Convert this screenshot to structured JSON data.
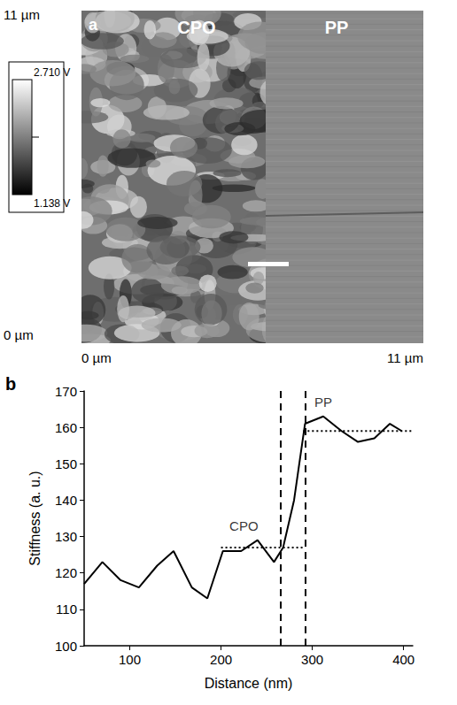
{
  "panel_a": {
    "label": "a",
    "regions": [
      "CPO",
      "PP"
    ],
    "y_axis": {
      "top": "11 µm",
      "bottom": "0 µm"
    },
    "x_axis": {
      "left": "0 µm",
      "right": "11 µm"
    },
    "colorbar": {
      "max": "2.710 V",
      "min": "1.138 V"
    }
  },
  "chart_data": {
    "type": "line",
    "panel_label": "b",
    "xlabel": "Distance (nm)",
    "ylabel": "Stiffness (a. u.)",
    "x": [
      50,
      70,
      90,
      110,
      130,
      148,
      168,
      185,
      202,
      222,
      240,
      258,
      268,
      280,
      292,
      312,
      332,
      350,
      368,
      385,
      398
    ],
    "values": [
      117,
      123,
      118,
      116,
      122,
      126,
      116,
      113,
      126,
      126,
      129,
      123,
      127,
      140,
      161,
      163,
      159,
      156,
      157,
      161,
      159
    ],
    "color": "#000000",
    "line_style": "solid",
    "xlim": [
      50,
      410
    ],
    "xticks": [
      100,
      200,
      300,
      400
    ],
    "ylim": [
      100,
      170
    ],
    "yticks": [
      100,
      110,
      120,
      130,
      140,
      150,
      160,
      170
    ],
    "vlines": [
      265,
      292
    ],
    "hlines": [
      {
        "y": 127,
        "x": [
          200,
          292
        ]
      },
      {
        "y": 159,
        "x": [
          290,
          410
        ]
      }
    ],
    "annotations": [
      {
        "text": "CPO",
        "x": 225,
        "y": 133
      },
      {
        "text": "PP",
        "x": 312,
        "y": 167
      }
    ]
  }
}
